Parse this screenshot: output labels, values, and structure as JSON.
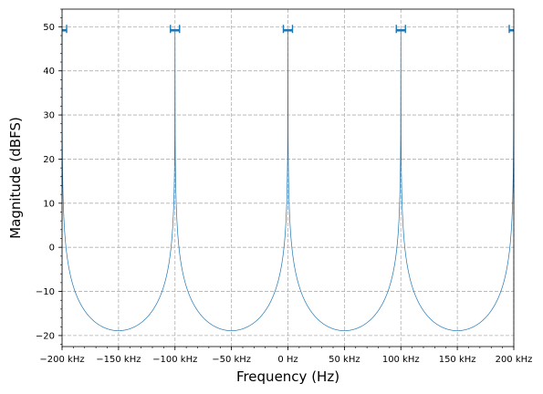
{
  "chart_data": {
    "type": "line",
    "title": "",
    "xlabel": "Frequency (Hz)",
    "ylabel": "Magnitude (dBFS)",
    "xlim": [
      -200000,
      200000
    ],
    "ylim": [
      -22.5,
      54
    ],
    "grid": true,
    "grid_style": "dashed",
    "color": "#1f77b4",
    "peaks_at_hz": [
      -200000,
      -100000,
      0,
      100000,
      200000
    ],
    "peak_level_dbfs": 49.2,
    "minima_at_hz": [
      -150000,
      -50000,
      50000,
      150000
    ],
    "minimum_level_dbfs": -18.9,
    "x_ticks": [
      {
        "value": -200000,
        "label": "−200 kHz"
      },
      {
        "value": -150000,
        "label": "−150 kHz"
      },
      {
        "value": -100000,
        "label": "−100 kHz"
      },
      {
        "value": -50000,
        "label": "−50 kHz"
      },
      {
        "value": 0,
        "label": "0 Hz"
      },
      {
        "value": 50000,
        "label": "50 kHz"
      },
      {
        "value": 100000,
        "label": "100 kHz"
      },
      {
        "value": 150000,
        "label": "150 kHz"
      },
      {
        "value": 200000,
        "label": "200 kHz"
      }
    ],
    "y_ticks": [
      {
        "value": -20,
        "label": "−20"
      },
      {
        "value": -10,
        "label": "−10"
      },
      {
        "value": 0,
        "label": "0"
      },
      {
        "value": 10,
        "label": "10"
      },
      {
        "value": 20,
        "label": "20"
      },
      {
        "value": 30,
        "label": "30"
      },
      {
        "value": 40,
        "label": "40"
      },
      {
        "value": 50,
        "label": "50"
      }
    ]
  }
}
